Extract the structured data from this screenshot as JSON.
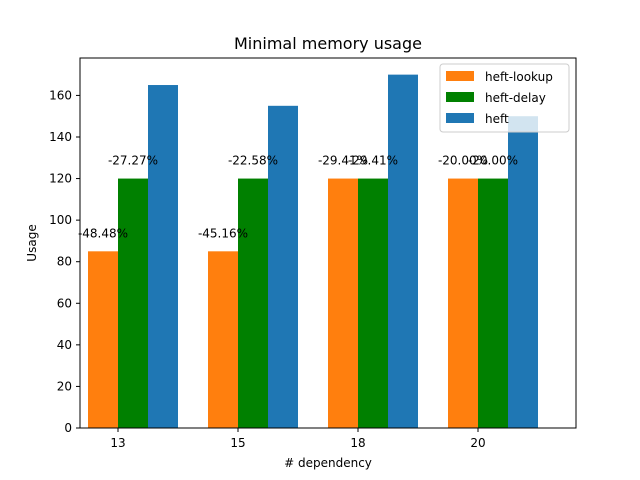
{
  "chart_data": {
    "type": "bar",
    "title": "Minimal memory usage",
    "xlabel": "# dependency",
    "ylabel": "Usage",
    "categories": [
      "13",
      "15",
      "18",
      "20"
    ],
    "ylim": [
      0,
      178
    ],
    "yticks": [
      0,
      20,
      40,
      60,
      80,
      100,
      120,
      140,
      160
    ],
    "grid": false,
    "legend_position": "top-right",
    "series": [
      {
        "name": "heft-lookup",
        "color": "#ff7f0e",
        "values": [
          85,
          85,
          120,
          120
        ],
        "labels": [
          "-48.48%",
          "-45.16%",
          "-29.41%",
          "-20.00%"
        ]
      },
      {
        "name": "heft-delay",
        "color": "#008000",
        "values": [
          120,
          120,
          120,
          120
        ],
        "labels": [
          "-27.27%",
          "-22.58%",
          "-29.41%",
          "-20.00%"
        ]
      },
      {
        "name": "heft",
        "color": "#1f77b4",
        "values": [
          165,
          155,
          170,
          150
        ]
      }
    ]
  }
}
